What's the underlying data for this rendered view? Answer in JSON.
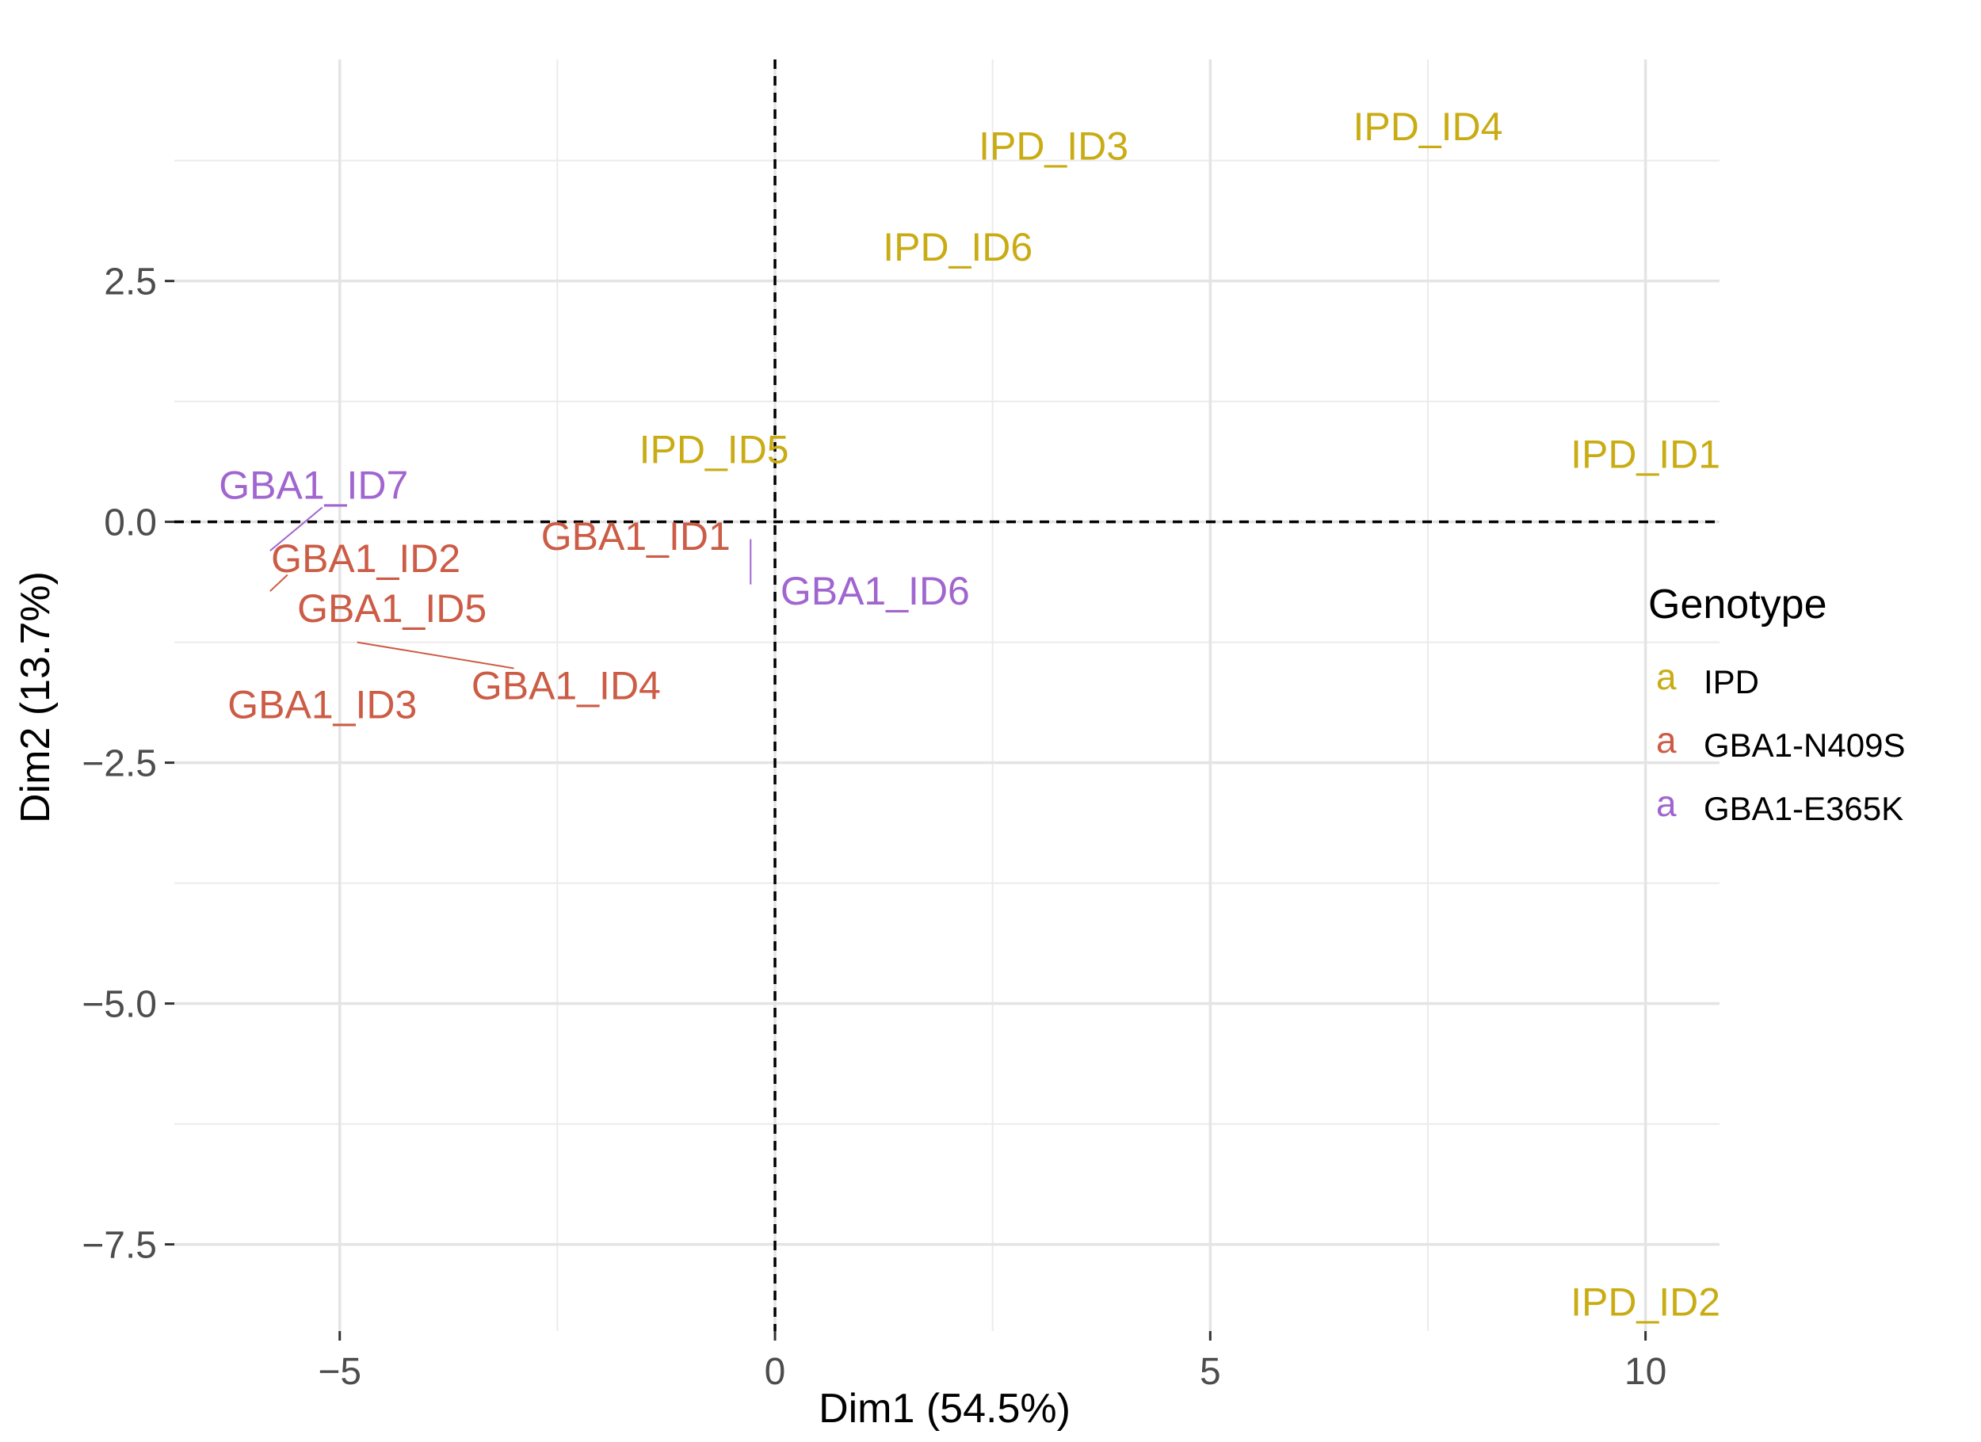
{
  "chart_data": {
    "type": "scatter",
    "xlabel": "Dim1 (54.5%)",
    "ylabel": "Dim2 (13.7%)",
    "xlim": [
      -6.9,
      10.85
    ],
    "ylim": [
      -8.4,
      4.8
    ],
    "xticks": [
      -5,
      0,
      5,
      10
    ],
    "xtick_labels": [
      "−5",
      "0",
      "5",
      "10"
    ],
    "yticks": [
      2.5,
      0.0,
      -2.5,
      -5.0,
      -7.5
    ],
    "ytick_labels": [
      "2.5",
      "0.0",
      "−2.5",
      "−5.0",
      "−7.5"
    ],
    "x_minor_grid": [
      -2.5,
      2.5,
      7.5
    ],
    "y_minor_grid": [
      3.75,
      1.25,
      -1.25,
      -3.75,
      -6.25
    ],
    "reference_lines": {
      "x": 0,
      "y": 0,
      "style": "dashed"
    },
    "grid": true,
    "legend_position": "right",
    "legend": {
      "title": "Genotype",
      "key_glyph": "a",
      "entries": [
        {
          "label": "IPD",
          "color": "#c9ac14"
        },
        {
          "label": "GBA1-N409S",
          "color": "#cc5c45"
        },
        {
          "label": "GBA1-E365K",
          "color": "#a065cf"
        }
      ]
    },
    "points": [
      {
        "label": "IPD_ID1",
        "group": "IPD",
        "x": 10.0,
        "y": 0.7
      },
      {
        "label": "IPD_ID2",
        "group": "IPD",
        "x": 10.0,
        "y": -8.1
      },
      {
        "label": "IPD_ID3",
        "group": "IPD",
        "x": 3.2,
        "y": 3.9
      },
      {
        "label": "IPD_ID4",
        "group": "IPD",
        "x": 7.5,
        "y": 4.1
      },
      {
        "label": "IPD_ID5",
        "group": "IPD",
        "x": -0.7,
        "y": 0.75
      },
      {
        "label": "IPD_ID6",
        "group": "IPD",
        "x": 2.1,
        "y": 2.85
      },
      {
        "label": "GBA1_ID1",
        "group": "GBA1-N409S",
        "x": -1.6,
        "y": -0.15,
        "line_to": null
      },
      {
        "label": "GBA1_ID2",
        "group": "GBA1-N409S",
        "x": -4.7,
        "y": -0.38
      },
      {
        "label": "GBA1_ID3",
        "group": "GBA1-N409S",
        "x": -5.2,
        "y": -1.9
      },
      {
        "label": "GBA1_ID4",
        "group": "GBA1-N409S",
        "x": -2.4,
        "y": -1.7
      },
      {
        "label": "GBA1_ID5",
        "group": "GBA1-N409S",
        "x": -4.4,
        "y": -0.9
      },
      {
        "label": "GBA1_ID6",
        "group": "GBA1-E365K",
        "x": 1.15,
        "y": -0.72
      },
      {
        "label": "GBA1_ID7",
        "group": "GBA1-E365K",
        "x": -5.3,
        "y": 0.38
      }
    ],
    "connector_segments": [
      {
        "group": "GBA1-E365K",
        "x1": -5.2,
        "y1": 0.15,
        "x2": -5.8,
        "y2": -0.3
      },
      {
        "group": "GBA1-N409S",
        "x1": -5.6,
        "y1": -0.55,
        "x2": -5.8,
        "y2": -0.72
      },
      {
        "group": "GBA1-N409S",
        "x1": -4.8,
        "y1": -1.25,
        "x2": -3.0,
        "y2": -1.52
      },
      {
        "group": "GBA1-E365K",
        "x1": -0.28,
        "y1": -0.18,
        "x2": -0.28,
        "y2": -0.65
      }
    ]
  }
}
